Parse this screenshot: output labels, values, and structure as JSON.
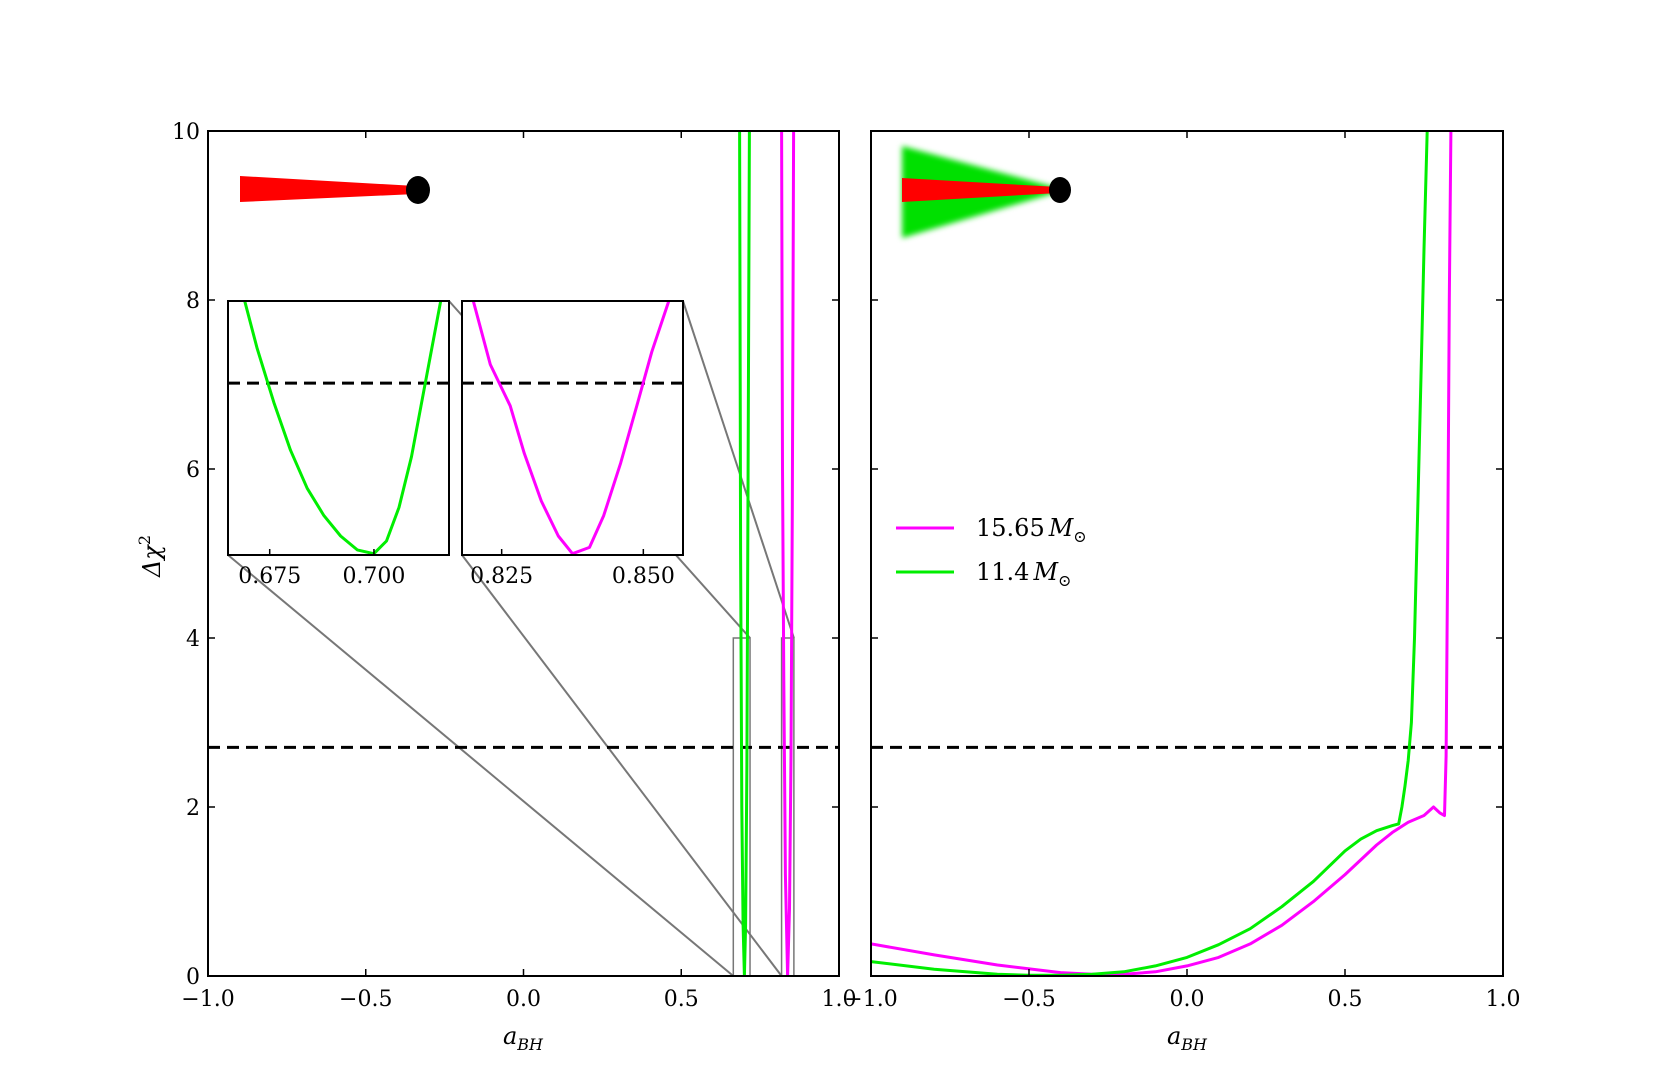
{
  "chart_data": [
    {
      "id": "left",
      "type": "line",
      "xlabel": "a_BH",
      "ylabel": "Δχ²",
      "xlim": [
        -1.0,
        1.0
      ],
      "ylim": [
        0,
        10
      ],
      "xticks": [
        -1.0,
        -0.5,
        0.0,
        0.5,
        1.0
      ],
      "xtick_labels": [
        "−1.0",
        "−0.5",
        "0.0",
        "0.5",
        "1.0"
      ],
      "yticks": [
        0,
        2,
        4,
        6,
        8,
        10
      ],
      "ytick_labels": [
        "0",
        "2",
        "4",
        "6",
        "8",
        "10"
      ],
      "hline": 2.706,
      "disk_icon": "thin-disk",
      "series": [
        {
          "color": "#00ee00",
          "x": [
            0.685,
            0.688,
            0.692,
            0.696,
            0.7,
            0.704,
            0.708,
            0.712,
            0.716
          ],
          "y": [
            10,
            5.0,
            2.0,
            0.6,
            0.0,
            0.6,
            2.5,
            6.0,
            10
          ]
        },
        {
          "color": "#ff00ff",
          "x": [
            0.818,
            0.821,
            0.825,
            0.83,
            0.837,
            0.843,
            0.848,
            0.852,
            0.856
          ],
          "y": [
            10,
            6.0,
            3.5,
            1.2,
            0.0,
            0.8,
            2.6,
            5.5,
            10
          ]
        }
      ],
      "zoom_boxes": [
        {
          "xlim": [
            0.665,
            0.718
          ],
          "ylim": [
            0,
            4
          ]
        },
        {
          "xlim": [
            0.818,
            0.857
          ],
          "ylim": [
            0,
            4
          ]
        }
      ],
      "insets": [
        {
          "xlim": [
            0.665,
            0.718
          ],
          "ylim": [
            0,
            4
          ],
          "xticks": [
            0.675,
            0.7
          ],
          "xtick_labels": [
            "0.675",
            "0.700"
          ],
          "color": "#00ee00",
          "x": [
            0.669,
            0.672,
            0.676,
            0.68,
            0.684,
            0.688,
            0.692,
            0.696,
            0.7,
            0.703,
            0.706,
            0.709,
            0.712,
            0.716
          ],
          "y": [
            4.0,
            3.25,
            2.4,
            1.65,
            1.05,
            0.62,
            0.3,
            0.08,
            0.02,
            0.22,
            0.75,
            1.55,
            2.6,
            4.0
          ]
        },
        {
          "xlim": [
            0.818,
            0.857
          ],
          "ylim": [
            0,
            4
          ],
          "xticks": [
            0.825,
            0.85
          ],
          "xtick_labels": [
            "0.825",
            "0.850"
          ],
          "color": "#ff00ff",
          "x": [
            0.82,
            0.823,
            0.8265,
            0.829,
            0.832,
            0.835,
            0.8375,
            0.8405,
            0.843,
            0.846,
            0.849,
            0.8515,
            0.8545
          ],
          "y": [
            4.0,
            3.0,
            2.35,
            1.6,
            0.85,
            0.3,
            0.02,
            0.12,
            0.62,
            1.45,
            2.4,
            3.2,
            4.0
          ]
        }
      ]
    },
    {
      "id": "right",
      "type": "line",
      "xlabel": "a_BH",
      "xlim": [
        -1.0,
        1.0
      ],
      "ylim": [
        0,
        10
      ],
      "xticks": [
        -1.0,
        -0.5,
        0.0,
        0.5,
        1.0
      ],
      "xtick_labels": [
        "−1.0",
        "−0.5",
        "0.0",
        "0.5",
        "1.0"
      ],
      "yticks": [
        0,
        2,
        4,
        6,
        8,
        10
      ],
      "hline": 2.706,
      "disk_icon": "thin-disk-with-corona",
      "legend": {
        "placement": "center-left",
        "entries": [
          {
            "number": "15.65",
            "unit": "M",
            "unit_sub": "⊙",
            "color": "#ff00ff"
          },
          {
            "number": "11.4",
            "unit": "M",
            "unit_sub": "⊙",
            "color": "#00ee00"
          }
        ]
      },
      "series": [
        {
          "color": "#ff00ff",
          "x": [
            -1.0,
            -0.8,
            -0.6,
            -0.4,
            -0.3,
            -0.2,
            -0.1,
            0.0,
            0.1,
            0.2,
            0.3,
            0.4,
            0.5,
            0.6,
            0.65,
            0.7,
            0.75,
            0.78,
            0.8,
            0.815,
            0.82,
            0.825,
            0.83,
            0.835
          ],
          "y": [
            0.38,
            0.25,
            0.13,
            0.04,
            0.02,
            0.02,
            0.05,
            0.12,
            0.22,
            0.38,
            0.6,
            0.88,
            1.2,
            1.55,
            1.7,
            1.82,
            1.9,
            2.0,
            1.93,
            1.9,
            2.6,
            5.0,
            8.0,
            10.0
          ]
        },
        {
          "color": "#00ee00",
          "x": [
            -1.0,
            -0.8,
            -0.6,
            -0.5,
            -0.4,
            -0.3,
            -0.2,
            -0.1,
            0.0,
            0.1,
            0.2,
            0.3,
            0.4,
            0.5,
            0.55,
            0.6,
            0.65,
            0.67,
            0.68,
            0.69,
            0.7,
            0.71,
            0.72,
            0.73,
            0.74,
            0.75,
            0.76
          ],
          "y": [
            0.17,
            0.08,
            0.02,
            0.01,
            0.01,
            0.02,
            0.05,
            0.12,
            0.22,
            0.37,
            0.56,
            0.82,
            1.12,
            1.48,
            1.62,
            1.72,
            1.78,
            1.8,
            2.0,
            2.25,
            2.55,
            3.0,
            4.0,
            5.5,
            7.0,
            8.6,
            10.0
          ]
        }
      ]
    }
  ]
}
